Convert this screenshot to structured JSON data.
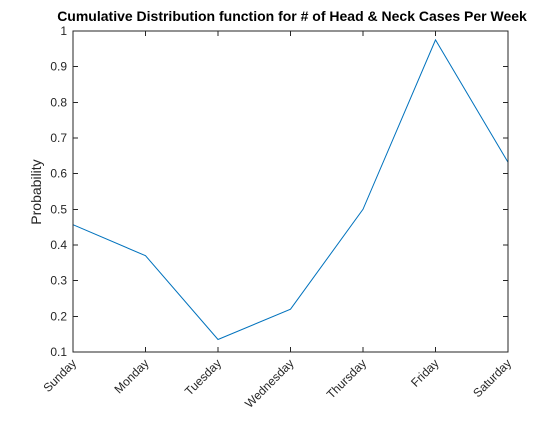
{
  "chart_data": {
    "type": "line",
    "title": "Cumulative Distribution function for # of Head & Neck Cases Per Week",
    "xlabel": "",
    "ylabel": "Probability",
    "categories": [
      "Sunday",
      "Monday",
      "Tuesday",
      "Wednesday",
      "Thursday",
      "Friday",
      "Saturday"
    ],
    "series": [
      {
        "values": [
          0.457,
          0.37,
          0.135,
          0.22,
          0.5,
          0.975,
          0.632
        ]
      }
    ],
    "ylim": [
      0.1,
      1
    ],
    "yticks": [
      "0.1",
      "0.2",
      "0.3",
      "0.4",
      "0.5",
      "0.6",
      "0.7",
      "0.8",
      "0.9",
      "1"
    ],
    "grid": false,
    "legend": false
  },
  "colors": {
    "line": "#0072BD",
    "axis": "#262626",
    "background": "#ffffff"
  }
}
